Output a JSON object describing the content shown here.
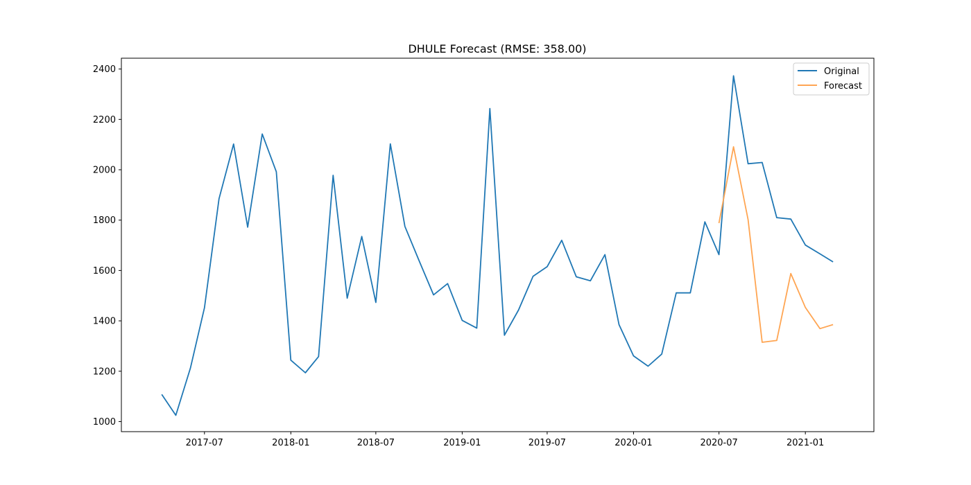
{
  "chart_data": {
    "type": "line",
    "title": "DHULE Forecast (RMSE: 358.00)",
    "xlabel": "",
    "ylabel": "",
    "x_axis": {
      "type": "date",
      "range": [
        "2017-01-05",
        "2021-05-27"
      ],
      "ticks": [
        {
          "date": "2017-07-01",
          "label": "2017-07"
        },
        {
          "date": "2018-01-01",
          "label": "2018-01"
        },
        {
          "date": "2018-07-01",
          "label": "2018-07"
        },
        {
          "date": "2019-01-01",
          "label": "2019-01"
        },
        {
          "date": "2019-07-01",
          "label": "2019-07"
        },
        {
          "date": "2020-01-01",
          "label": "2020-01"
        },
        {
          "date": "2020-07-01",
          "label": "2020-07"
        },
        {
          "date": "2021-01-01",
          "label": "2021-01"
        }
      ]
    },
    "y_axis": {
      "range": [
        960,
        2443
      ],
      "ticks": [
        1000,
        1200,
        1400,
        1600,
        1800,
        2000,
        2200,
        2400
      ]
    },
    "grid": false,
    "legend_position": "top-right",
    "series": [
      {
        "name": "Original",
        "color": "#1f77b4",
        "x": [
          "2017-04-01",
          "2017-05-01",
          "2017-06-01",
          "2017-07-01",
          "2017-08-01",
          "2017-09-01",
          "2017-10-01",
          "2017-11-01",
          "2017-12-01",
          "2018-01-01",
          "2018-02-01",
          "2018-03-01",
          "2018-04-01",
          "2018-05-01",
          "2018-06-01",
          "2018-07-01",
          "2018-08-01",
          "2018-09-01",
          "2018-10-01",
          "2018-11-01",
          "2018-12-01",
          "2019-01-01",
          "2019-02-01",
          "2019-03-01",
          "2019-04-01",
          "2019-05-01",
          "2019-06-01",
          "2019-07-01",
          "2019-08-01",
          "2019-09-01",
          "2019-10-01",
          "2019-11-01",
          "2019-12-01",
          "2020-01-01",
          "2020-02-01",
          "2020-03-01",
          "2020-04-01",
          "2020-05-01",
          "2020-06-01",
          "2020-07-01",
          "2020-08-01",
          "2020-09-01",
          "2020-10-01",
          "2020-11-01",
          "2020-12-01",
          "2021-01-01",
          "2021-02-01",
          "2021-03-01"
        ],
        "values": [
          1108,
          1025,
          1212,
          1452,
          1885,
          2102,
          1772,
          2142,
          1992,
          1244,
          1194,
          1258,
          1978,
          1490,
          1735,
          1473,
          2103,
          1775,
          1640,
          1503,
          1548,
          1402,
          1371,
          2243,
          1343,
          1443,
          1577,
          1615,
          1720,
          1575,
          1559,
          1663,
          1385,
          1261,
          1220,
          1268,
          1511,
          1511,
          1793,
          1663,
          2373,
          2024,
          2029,
          1810,
          1804,
          1701,
          1666,
          1634
        ]
      },
      {
        "name": "Forecast",
        "color": "#ffa552",
        "x": [
          "2020-07-01",
          "2020-08-01",
          "2020-09-01",
          "2020-10-01",
          "2020-11-01",
          "2020-12-01",
          "2021-01-01",
          "2021-02-01",
          "2021-03-01"
        ],
        "values": [
          1788,
          2091,
          1802,
          1315,
          1322,
          1588,
          1453,
          1369,
          1385
        ]
      }
    ]
  }
}
